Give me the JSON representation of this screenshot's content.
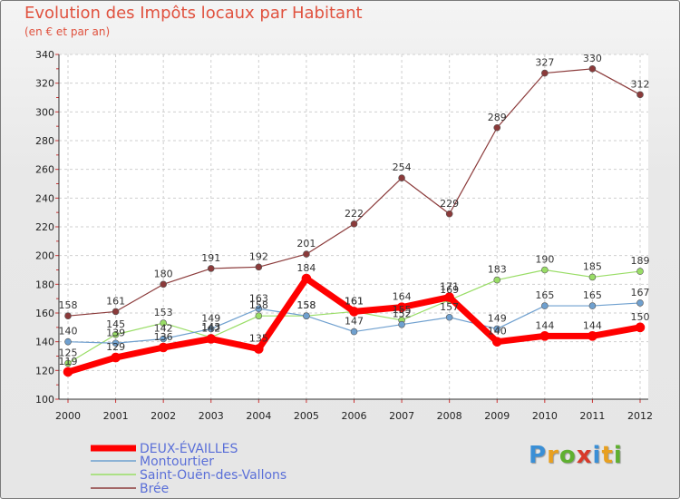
{
  "title": "Evolution des Impôts locaux par Habitant",
  "subtitle": "(en € et par an)",
  "logo_text": "Proxiti",
  "chart_data": {
    "type": "line",
    "x": [
      "2000",
      "2001",
      "2002",
      "2003",
      "2004",
      "2005",
      "2006",
      "2007",
      "2008",
      "2009",
      "2010",
      "2011",
      "2012"
    ],
    "ylim": [
      100,
      340
    ],
    "yticks": [
      100,
      120,
      140,
      160,
      180,
      200,
      220,
      240,
      260,
      280,
      300,
      320,
      340
    ],
    "grid": true,
    "legend_position": "bottom-left",
    "series": [
      {
        "name": "DEUX-ÉVAILLES",
        "color": "#ff0000",
        "values": [
          119,
          129,
          136,
          142,
          135,
          184,
          161,
          164,
          171,
          140,
          144,
          144,
          150
        ]
      },
      {
        "name": "Montourtier",
        "color": "#6fa0cf",
        "values": [
          140,
          139,
          142,
          149,
          163,
          158,
          147,
          152,
          157,
          149,
          165,
          165,
          167
        ]
      },
      {
        "name": "Saint-Ouën-des-Vallons",
        "color": "#99dd66",
        "values": [
          125,
          145,
          153,
          143,
          158,
          158,
          161,
          155,
          169,
          183,
          190,
          185,
          189
        ]
      },
      {
        "name": "Brée",
        "color": "#8b3a3a",
        "values": [
          158,
          161,
          180,
          191,
          192,
          201,
          222,
          254,
          229,
          289,
          327,
          330,
          312
        ]
      }
    ]
  }
}
